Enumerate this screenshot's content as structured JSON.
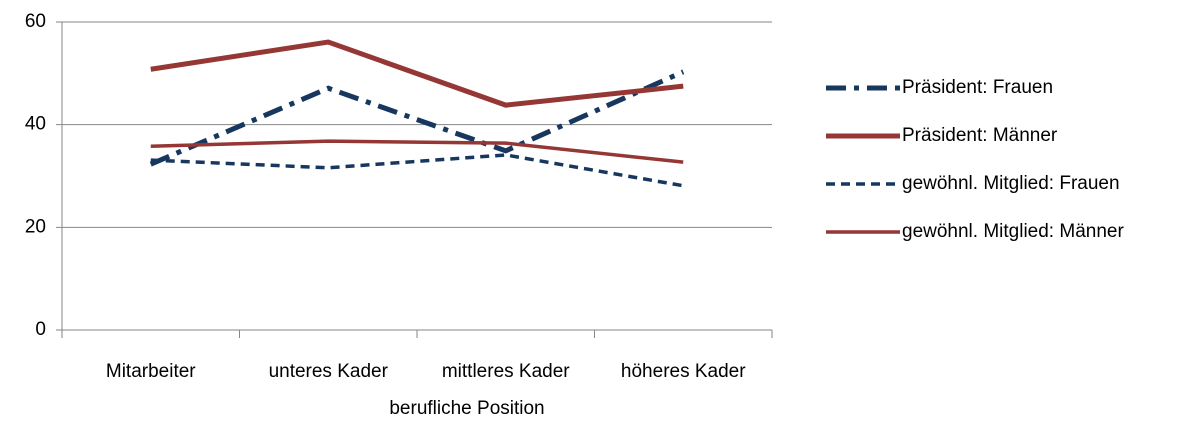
{
  "chart_data": {
    "type": "line",
    "x_label": "berufliche Position",
    "categories": [
      "Mitarbeiter",
      "unteres Kader",
      "mittleres Kader",
      "höheres Kader"
    ],
    "series": [
      {
        "name": "Präsident: Frauen",
        "color": "#17375e",
        "dashed": true,
        "thick": true,
        "values": [
          32.3,
          47.1,
          34.9,
          50.3
        ]
      },
      {
        "name": "Präsident: Männer",
        "color": "#953735",
        "dashed": false,
        "thick": true,
        "values": [
          50.8,
          56.1,
          43.8,
          47.5
        ]
      },
      {
        "name": "gewöhnl. Mitglied: Frauen",
        "color": "#17375e",
        "dashed": true,
        "thick": false,
        "values": [
          33.1,
          31.6,
          34.1,
          28.1
        ]
      },
      {
        "name": "gewöhnl. Mitglied: Männer",
        "color": "#953735",
        "dashed": false,
        "thick": false,
        "values": [
          35.8,
          36.8,
          36.4,
          32.7
        ]
      }
    ],
    "ylim": [
      0,
      60
    ],
    "yticks": [
      0,
      20,
      40,
      60
    ],
    "grid": true,
    "legend": "right"
  }
}
